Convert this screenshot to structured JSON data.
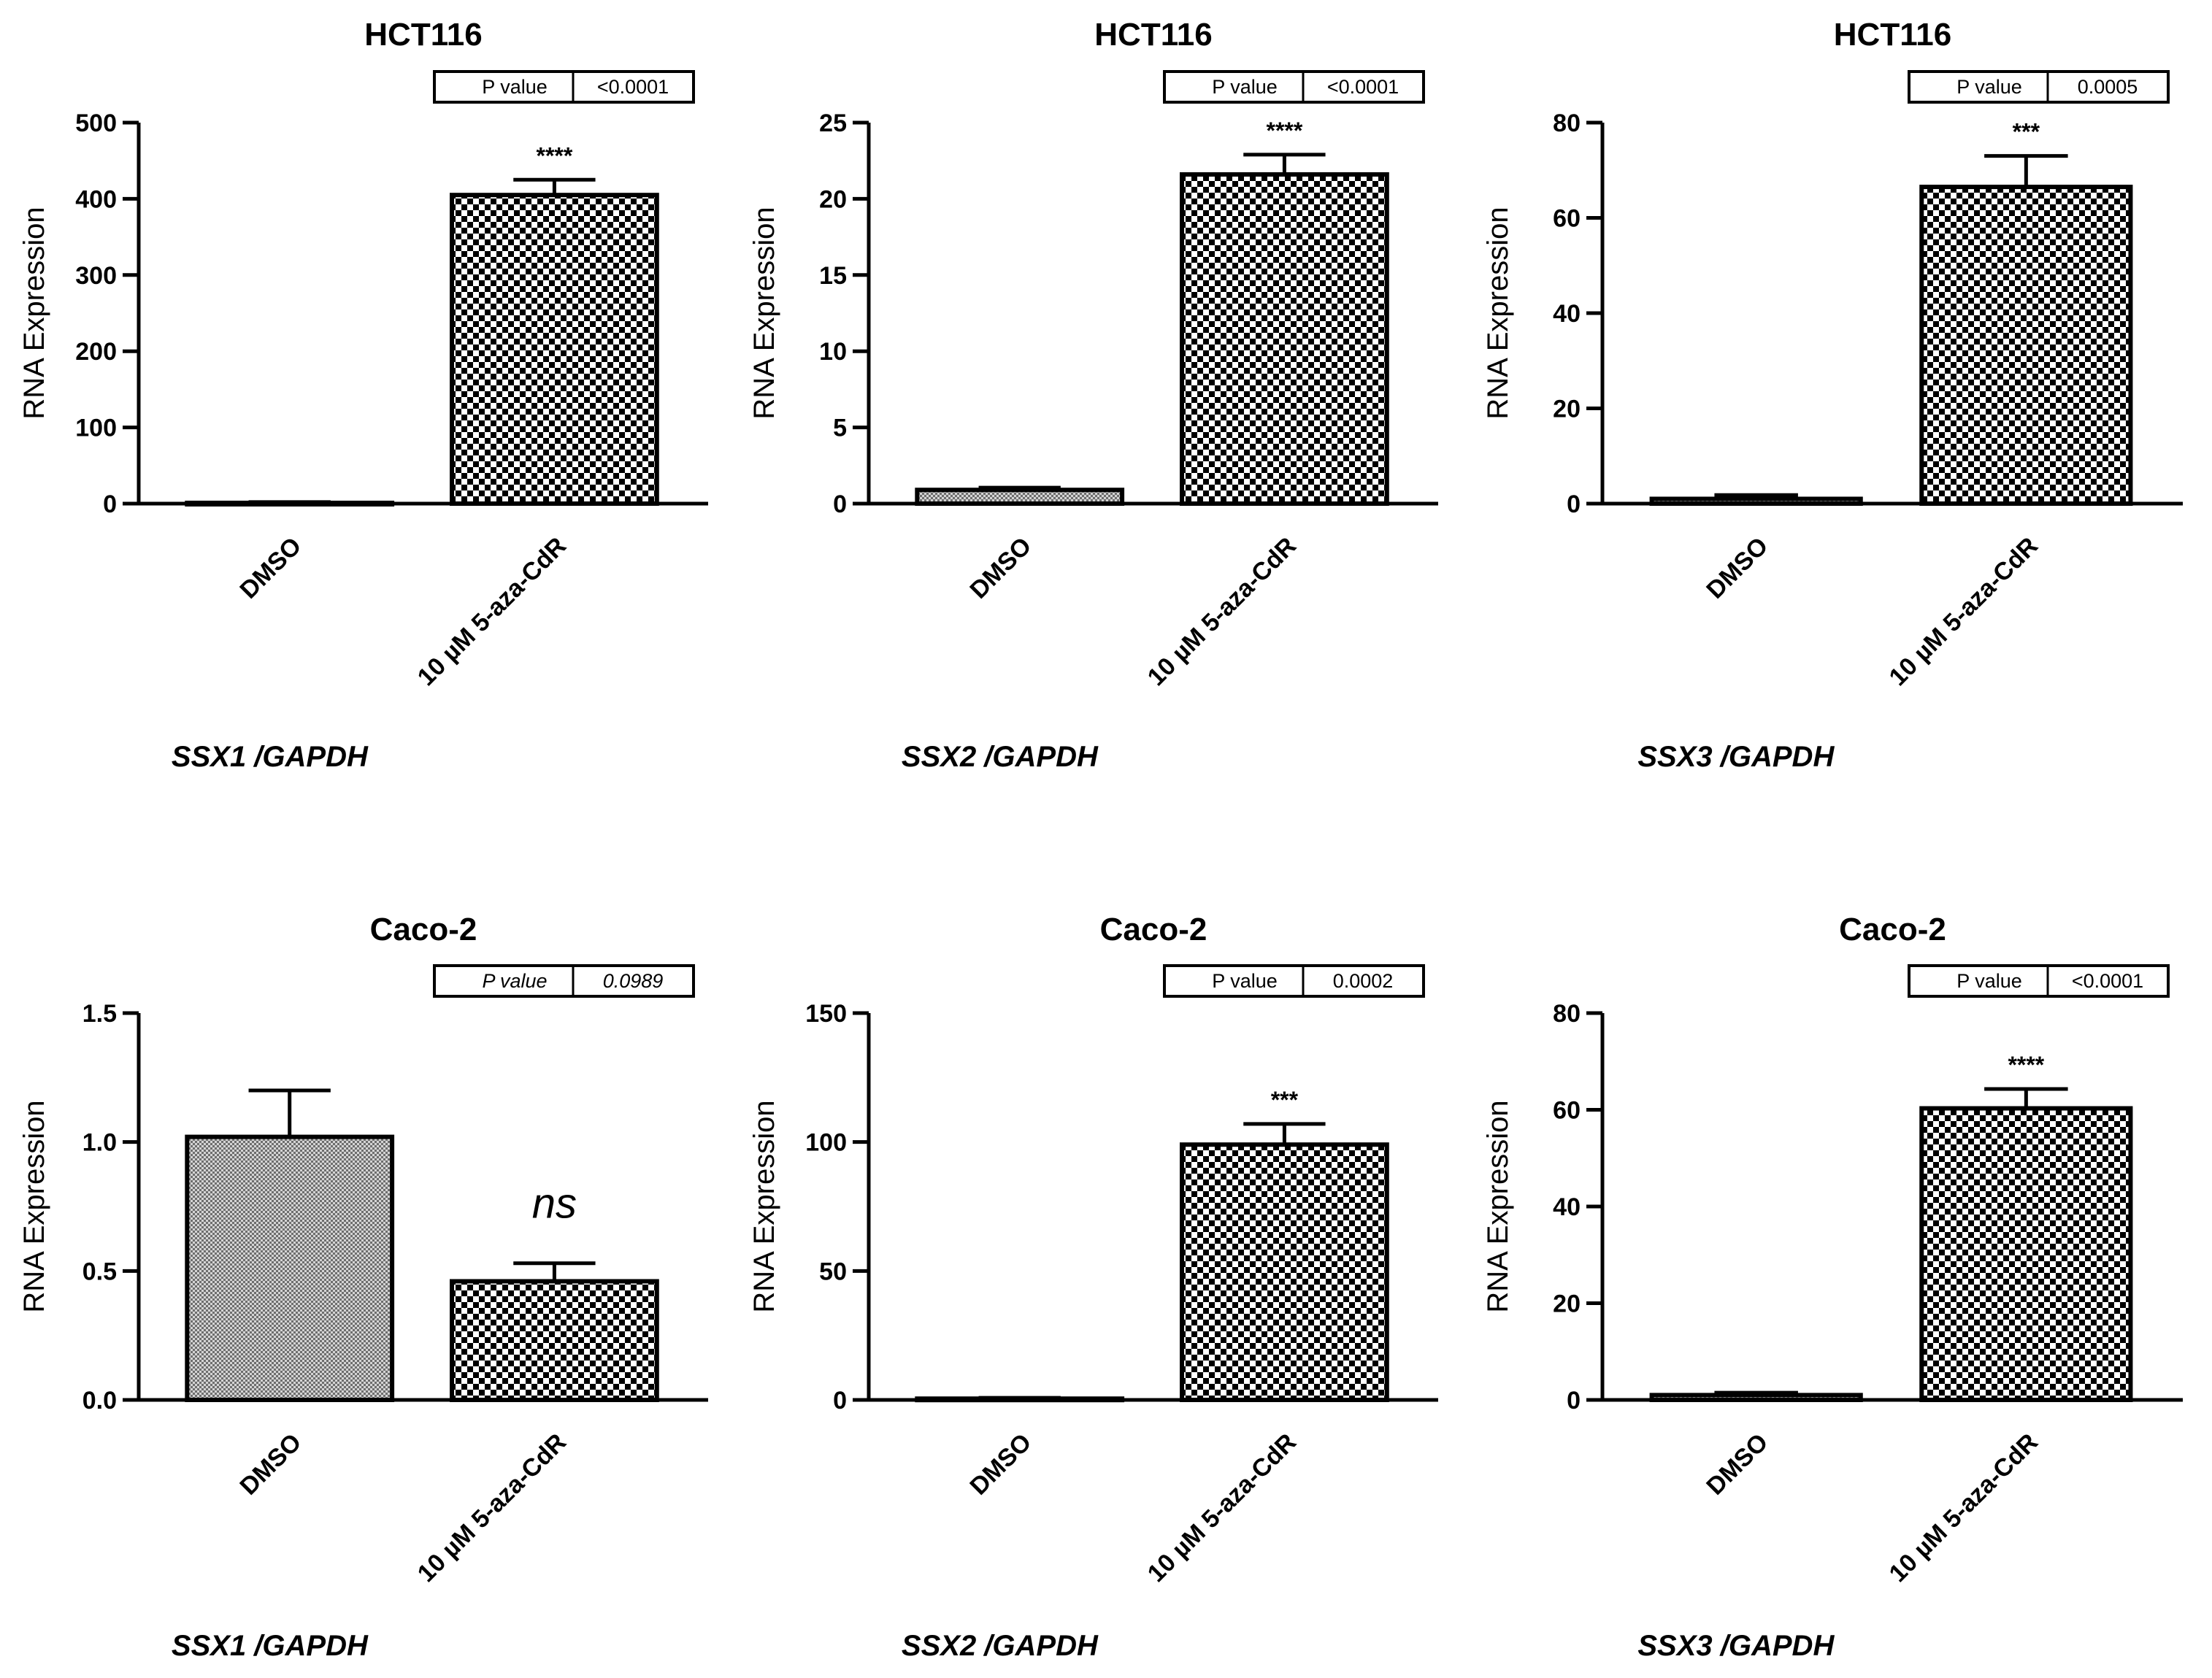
{
  "chart_data": [
    {
      "type": "bar",
      "title": "HCT116",
      "ylabel": "RNA Expression",
      "xlabel": "SSX1 /GAPDH",
      "categories": [
        "DMSO",
        "10 µM 5-aza-CdR"
      ],
      "values": [
        1,
        405
      ],
      "errors": [
        1,
        20
      ],
      "patterns": [
        "fine",
        "checker"
      ],
      "ylim": [
        0,
        500
      ],
      "yticks": [
        0,
        100,
        200,
        300,
        400,
        500
      ],
      "ytick_labels": [
        "0",
        "100",
        "200",
        "300",
        "400",
        "500"
      ],
      "significance": [
        "",
        "****"
      ],
      "pvalue_label": "P value",
      "pvalue": "<0.0001",
      "pvalue_italic": false
    },
    {
      "type": "bar",
      "title": "HCT116",
      "ylabel": "RNA Expression",
      "xlabel": "SSX2 /GAPDH",
      "categories": [
        "DMSO",
        "10 µM 5-aza-CdR"
      ],
      "values": [
        0.9,
        21.6
      ],
      "errors": [
        0.15,
        1.3
      ],
      "patterns": [
        "fine",
        "checker"
      ],
      "ylim": [
        0,
        25
      ],
      "yticks": [
        0,
        5,
        10,
        15,
        20,
        25
      ],
      "ytick_labels": [
        "0",
        "5",
        "10",
        "15",
        "20",
        "25"
      ],
      "significance": [
        "",
        "****"
      ],
      "pvalue_label": "P value",
      "pvalue": "<0.0001",
      "pvalue_italic": false
    },
    {
      "type": "bar",
      "title": "HCT116",
      "ylabel": "RNA Expression",
      "xlabel": "SSX3 /GAPDH",
      "categories": [
        "DMSO",
        "10 µM 5-aza-CdR"
      ],
      "values": [
        1,
        66.5
      ],
      "errors": [
        0.8,
        6.5
      ],
      "patterns": [
        "fine",
        "checker"
      ],
      "ylim": [
        0,
        80
      ],
      "yticks": [
        0,
        20,
        40,
        60,
        80
      ],
      "ytick_labels": [
        "0",
        "20",
        "40",
        "60",
        "80"
      ],
      "significance": [
        "",
        "***"
      ],
      "pvalue_label": "P value",
      "pvalue": "0.0005",
      "pvalue_italic": false
    },
    {
      "type": "bar",
      "title": "Caco-2",
      "ylabel": "RNA Expression",
      "xlabel": "SSX1 /GAPDH",
      "categories": [
        "DMSO",
        "10 µM 5-aza-CdR"
      ],
      "values": [
        1.02,
        0.46
      ],
      "errors": [
        0.18,
        0.07
      ],
      "patterns": [
        "fine",
        "checker"
      ],
      "ylim": [
        0,
        1.5
      ],
      "yticks": [
        0,
        0.5,
        1.0,
        1.5
      ],
      "ytick_labels": [
        "0.0",
        "0.5",
        "1.0",
        "1.5"
      ],
      "significance": [
        "",
        "ns"
      ],
      "pvalue_label": "P value",
      "pvalue": "0.0989",
      "pvalue_italic": true
    },
    {
      "type": "bar",
      "title": "Caco-2",
      "ylabel": "RNA Expression",
      "xlabel": "SSX2 /GAPDH",
      "categories": [
        "DMSO",
        "10 µM 5-aza-CdR"
      ],
      "values": [
        0.5,
        99
      ],
      "errors": [
        0.3,
        8
      ],
      "patterns": [
        "fine",
        "checker"
      ],
      "ylim": [
        0,
        150
      ],
      "yticks": [
        0,
        50,
        100,
        150
      ],
      "ytick_labels": [
        "0",
        "50",
        "100",
        "150"
      ],
      "significance": [
        "",
        "***"
      ],
      "pvalue_label": "P value",
      "pvalue": "0.0002",
      "pvalue_italic": false
    },
    {
      "type": "bar",
      "title": "Caco-2",
      "ylabel": "RNA Expression",
      "xlabel": "SSX3 /GAPDH",
      "categories": [
        "DMSO",
        "10 µM 5-aza-CdR"
      ],
      "values": [
        1,
        60.3
      ],
      "errors": [
        0.5,
        4
      ],
      "patterns": [
        "fine",
        "checker"
      ],
      "ylim": [
        0,
        80
      ],
      "yticks": [
        0,
        20,
        40,
        60,
        80
      ],
      "ytick_labels": [
        "0",
        "20",
        "40",
        "60",
        "80"
      ],
      "significance": [
        "",
        "****"
      ],
      "pvalue_label": "P value",
      "pvalue": "<0.0001",
      "pvalue_italic": false
    }
  ]
}
